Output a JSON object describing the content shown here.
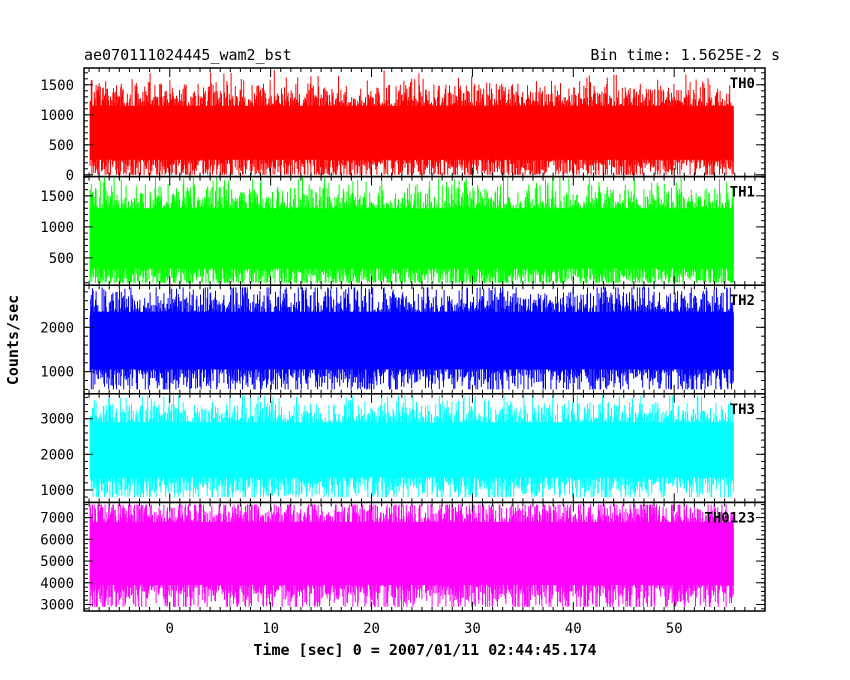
{
  "header": {
    "title_left": "ae070111024445_wam2_bst",
    "title_right": "Bin time: 1.5625E-2 s"
  },
  "axes": {
    "xlabel": "Time [sec] 0 = 2007/01/11 02:44:45.174",
    "ylabel": "Counts/sec"
  },
  "chart_data": {
    "type": "line",
    "x_range": [
      -8.5,
      59
    ],
    "x_ticks": [
      0,
      10,
      20,
      30,
      40,
      50
    ],
    "x_tick_labels": [
      "0",
      "10",
      "20",
      "30",
      "40",
      "50"
    ],
    "x_data_range": [
      -7.9,
      55.9
    ],
    "grid": false,
    "panels": [
      {
        "label": "TH0",
        "color": "#ff0000",
        "ylim": [
          -30,
          1780
        ],
        "y_ticks": [
          0,
          500,
          1000,
          1500
        ],
        "y_tick_labels": [
          "0",
          "500",
          "1000",
          "1500"
        ],
        "mean": 700,
        "band": [
          250,
          1150
        ],
        "extremes": [
          0,
          1750
        ]
      },
      {
        "label": "TH1",
        "color": "#00ff00",
        "ylim": [
          60,
          1810
        ],
        "y_ticks": [
          500,
          1000,
          1500
        ],
        "y_tick_labels": [
          "500",
          "1000",
          "1500"
        ],
        "mean": 800,
        "band": [
          330,
          1300
        ],
        "extremes": [
          100,
          1800
        ]
      },
      {
        "label": "TH2",
        "color": "#0000ff",
        "ylim": [
          500,
          2950
        ],
        "y_ticks": [
          1000,
          2000
        ],
        "y_tick_labels": [
          "1000",
          "2000"
        ],
        "mean": 1700,
        "band": [
          1050,
          2350
        ],
        "extremes": [
          600,
          2900
        ]
      },
      {
        "label": "TH3",
        "color": "#00ffff",
        "ylim": [
          650,
          3700
        ],
        "y_ticks": [
          1000,
          2000,
          3000
        ],
        "y_tick_labels": [
          "1000",
          "2000",
          "3000"
        ],
        "mean": 2100,
        "band": [
          1350,
          2900
        ],
        "extremes": [
          800,
          3650
        ]
      },
      {
        "label": "TH0123",
        "color": "#ff00ff",
        "ylim": [
          2700,
          7700
        ],
        "y_ticks": [
          3000,
          4000,
          5000,
          6000,
          7000
        ],
        "y_tick_labels": [
          "3000",
          "4000",
          "5000",
          "6000",
          "7000"
        ],
        "mean": 5300,
        "band": [
          3900,
          6800
        ],
        "extremes": [
          2900,
          7600
        ]
      }
    ]
  }
}
